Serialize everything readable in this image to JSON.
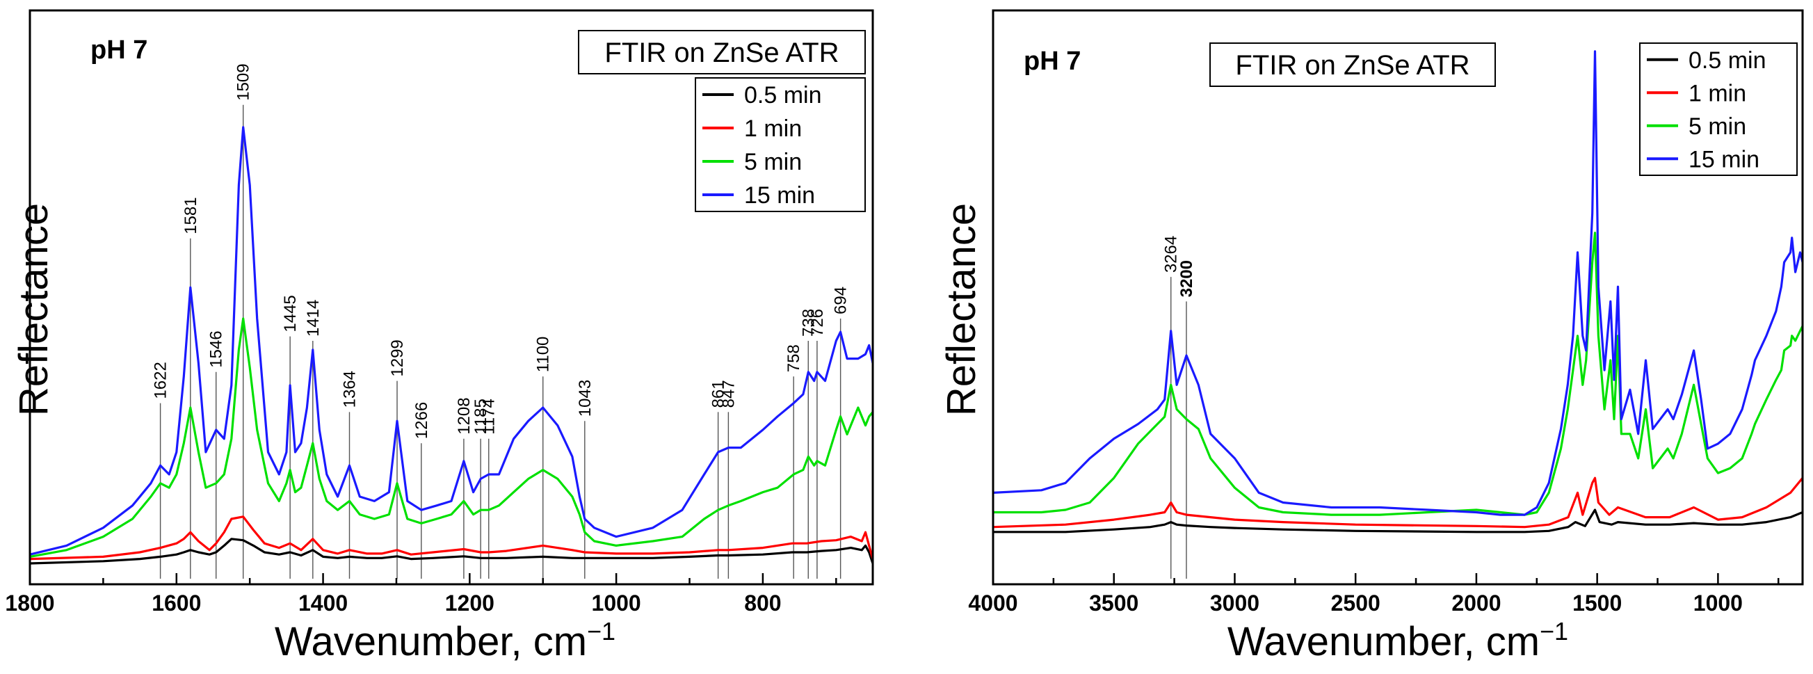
{
  "chart_data": [
    {
      "type": "line",
      "panel": "left",
      "title": "FTIR on ZnSe ATR",
      "annotation": "pH 7",
      "xlabel": "Wavenumber, cm",
      "xlabel_sup": "−1",
      "ylabel": "Reflectance",
      "xlim": [
        1800,
        650
      ],
      "ylim": [
        0,
        1
      ],
      "x_reversed": true,
      "x_ticks": [
        1800,
        1600,
        1400,
        1200,
        1000,
        800
      ],
      "y_ticks_shown": false,
      "legend": {
        "placement": "top-right",
        "entries": [
          "0.5 min",
          "1 min",
          "5 min",
          "15 min"
        ]
      },
      "peak_labels": [
        "1622",
        "1581",
        "1546",
        "1509",
        "1445",
        "1414",
        "1364",
        "1299",
        "1266",
        "1208",
        "1185",
        "1174",
        "1100",
        "1043",
        "861",
        "847",
        "758",
        "738",
        "726",
        "694"
      ],
      "peak_positions": [
        1622,
        1581,
        1546,
        1509,
        1445,
        1414,
        1364,
        1299,
        1266,
        1208,
        1185,
        1174,
        1100,
        1043,
        861,
        847,
        758,
        738,
        726,
        694
      ],
      "peak_label_tops": [
        0.36,
        0.73,
        0.43,
        1.03,
        0.51,
        0.5,
        0.34,
        0.41,
        0.27,
        0.28,
        0.28,
        0.28,
        0.42,
        0.32,
        0.34,
        0.34,
        0.42,
        0.5,
        0.5,
        0.55
      ],
      "series": [
        {
          "name": "0.5 min",
          "color": "#000000",
          "x": [
            1800,
            1700,
            1650,
            1622,
            1600,
            1590,
            1581,
            1570,
            1555,
            1546,
            1535,
            1525,
            1509,
            1495,
            1480,
            1460,
            1445,
            1430,
            1414,
            1400,
            1380,
            1364,
            1340,
            1320,
            1299,
            1280,
            1250,
            1208,
            1185,
            1174,
            1150,
            1100,
            1060,
            1043,
            1000,
            950,
            900,
            861,
            847,
            800,
            760,
            740,
            720,
            700,
            680,
            665,
            660,
            655,
            650
          ],
          "values": [
            0.0,
            0.005,
            0.01,
            0.015,
            0.02,
            0.025,
            0.03,
            0.025,
            0.02,
            0.025,
            0.04,
            0.055,
            0.052,
            0.04,
            0.025,
            0.02,
            0.025,
            0.018,
            0.03,
            0.015,
            0.012,
            0.015,
            0.012,
            0.012,
            0.016,
            0.01,
            0.012,
            0.016,
            0.012,
            0.012,
            0.012,
            0.015,
            0.012,
            0.012,
            0.012,
            0.012,
            0.015,
            0.018,
            0.018,
            0.02,
            0.025,
            0.025,
            0.028,
            0.03,
            0.035,
            0.03,
            0.04,
            0.025,
            0.0
          ]
        },
        {
          "name": "1 min",
          "color": "#ff0000",
          "x": [
            1800,
            1700,
            1650,
            1622,
            1600,
            1590,
            1581,
            1570,
            1555,
            1546,
            1535,
            1525,
            1509,
            1495,
            1480,
            1460,
            1445,
            1430,
            1414,
            1400,
            1380,
            1364,
            1340,
            1320,
            1299,
            1280,
            1250,
            1208,
            1185,
            1174,
            1150,
            1100,
            1060,
            1043,
            1000,
            950,
            900,
            861,
            847,
            800,
            760,
            740,
            720,
            700,
            680,
            665,
            660,
            655,
            650
          ],
          "values": [
            0.01,
            0.015,
            0.025,
            0.035,
            0.045,
            0.055,
            0.07,
            0.05,
            0.03,
            0.045,
            0.07,
            0.1,
            0.105,
            0.075,
            0.045,
            0.035,
            0.045,
            0.03,
            0.055,
            0.03,
            0.022,
            0.03,
            0.022,
            0.022,
            0.03,
            0.02,
            0.025,
            0.032,
            0.025,
            0.025,
            0.028,
            0.04,
            0.03,
            0.025,
            0.022,
            0.022,
            0.025,
            0.03,
            0.03,
            0.035,
            0.045,
            0.045,
            0.05,
            0.052,
            0.06,
            0.05,
            0.07,
            0.04,
            0.01
          ]
        },
        {
          "name": "5 min",
          "color": "#00e000",
          "x": [
            1800,
            1750,
            1700,
            1660,
            1635,
            1622,
            1610,
            1600,
            1590,
            1581,
            1570,
            1560,
            1546,
            1535,
            1525,
            1515,
            1509,
            1500,
            1490,
            1475,
            1460,
            1450,
            1445,
            1438,
            1430,
            1422,
            1414,
            1405,
            1395,
            1380,
            1364,
            1350,
            1330,
            1310,
            1299,
            1285,
            1266,
            1245,
            1225,
            1208,
            1195,
            1185,
            1174,
            1160,
            1140,
            1120,
            1100,
            1080,
            1060,
            1050,
            1043,
            1030,
            1000,
            950,
            910,
            880,
            861,
            847,
            830,
            800,
            780,
            758,
            745,
            738,
            730,
            726,
            715,
            700,
            694,
            685,
            670,
            660,
            655,
            650
          ],
          "values": [
            0.015,
            0.03,
            0.06,
            0.1,
            0.15,
            0.18,
            0.17,
            0.2,
            0.27,
            0.35,
            0.25,
            0.17,
            0.18,
            0.2,
            0.28,
            0.48,
            0.55,
            0.44,
            0.3,
            0.18,
            0.14,
            0.18,
            0.21,
            0.16,
            0.17,
            0.22,
            0.27,
            0.19,
            0.14,
            0.12,
            0.14,
            0.11,
            0.1,
            0.11,
            0.18,
            0.1,
            0.09,
            0.1,
            0.11,
            0.14,
            0.11,
            0.12,
            0.12,
            0.13,
            0.16,
            0.19,
            0.21,
            0.19,
            0.15,
            0.11,
            0.07,
            0.05,
            0.04,
            0.05,
            0.06,
            0.1,
            0.12,
            0.13,
            0.14,
            0.16,
            0.17,
            0.2,
            0.21,
            0.24,
            0.22,
            0.23,
            0.22,
            0.3,
            0.33,
            0.29,
            0.35,
            0.31,
            0.33,
            0.34
          ]
        },
        {
          "name": "15 min",
          "color": "#1a1aff",
          "x": [
            1800,
            1750,
            1700,
            1660,
            1635,
            1622,
            1610,
            1600,
            1590,
            1581,
            1570,
            1560,
            1546,
            1535,
            1525,
            1515,
            1509,
            1500,
            1490,
            1475,
            1460,
            1450,
            1445,
            1438,
            1430,
            1422,
            1414,
            1405,
            1395,
            1380,
            1364,
            1350,
            1330,
            1310,
            1299,
            1285,
            1266,
            1245,
            1225,
            1208,
            1195,
            1185,
            1174,
            1160,
            1140,
            1120,
            1100,
            1080,
            1060,
            1050,
            1043,
            1030,
            1000,
            950,
            910,
            880,
            861,
            847,
            830,
            800,
            780,
            758,
            745,
            738,
            730,
            726,
            715,
            700,
            694,
            685,
            670,
            660,
            655,
            650
          ],
          "values": [
            0.02,
            0.04,
            0.08,
            0.13,
            0.18,
            0.22,
            0.2,
            0.25,
            0.42,
            0.62,
            0.45,
            0.25,
            0.3,
            0.28,
            0.4,
            0.85,
            0.98,
            0.85,
            0.55,
            0.25,
            0.2,
            0.25,
            0.4,
            0.25,
            0.27,
            0.35,
            0.48,
            0.3,
            0.2,
            0.15,
            0.22,
            0.15,
            0.14,
            0.16,
            0.32,
            0.14,
            0.12,
            0.13,
            0.14,
            0.23,
            0.16,
            0.19,
            0.2,
            0.2,
            0.28,
            0.32,
            0.35,
            0.31,
            0.24,
            0.15,
            0.1,
            0.08,
            0.06,
            0.08,
            0.12,
            0.2,
            0.25,
            0.26,
            0.26,
            0.3,
            0.33,
            0.36,
            0.38,
            0.43,
            0.41,
            0.43,
            0.41,
            0.5,
            0.52,
            0.46,
            0.46,
            0.47,
            0.49,
            0.45
          ]
        }
      ]
    },
    {
      "type": "line",
      "panel": "right",
      "title": "FTIR on ZnSe ATR",
      "annotation": "pH 7",
      "xlabel": "Wavenumber, cm",
      "xlabel_sup": "−1",
      "ylabel": "Reflectance",
      "xlim": [
        4000,
        650
      ],
      "ylim": [
        0,
        1
      ],
      "x_reversed": true,
      "x_ticks": [
        4000,
        3500,
        3000,
        2500,
        2000,
        1500,
        1000
      ],
      "y_ticks_shown": false,
      "legend": {
        "placement": "top-right",
        "entries": [
          "0.5 min",
          "1 min",
          "5 min",
          "15 min"
        ]
      },
      "peak_labels": [
        "3264",
        "3200"
      ],
      "peak_positions": [
        3264,
        3200
      ],
      "peak_label_tops": [
        0.57,
        0.52
      ],
      "series": [
        {
          "name": "0.5 min",
          "color": "#000000",
          "x": [
            4000,
            3700,
            3500,
            3350,
            3290,
            3264,
            3240,
            3200,
            3100,
            3000,
            2800,
            2500,
            2000,
            1800,
            1700,
            1620,
            1590,
            1550,
            1515,
            1509,
            1490,
            1440,
            1414,
            1300,
            1200,
            1100,
            1000,
            900,
            800,
            700,
            650
          ],
          "values": [
            0.05,
            0.05,
            0.055,
            0.06,
            0.065,
            0.07,
            0.065,
            0.063,
            0.06,
            0.058,
            0.055,
            0.052,
            0.05,
            0.05,
            0.052,
            0.06,
            0.07,
            0.062,
            0.09,
            0.095,
            0.07,
            0.065,
            0.07,
            0.065,
            0.065,
            0.068,
            0.065,
            0.065,
            0.07,
            0.08,
            0.09
          ]
        },
        {
          "name": "1 min",
          "color": "#ff0000",
          "x": [
            4000,
            3700,
            3500,
            3350,
            3290,
            3264,
            3240,
            3200,
            3100,
            3000,
            2800,
            2500,
            2000,
            1800,
            1700,
            1620,
            1581,
            1560,
            1520,
            1509,
            1495,
            1450,
            1414,
            1300,
            1200,
            1100,
            1000,
            900,
            800,
            700,
            650
          ],
          "values": [
            0.06,
            0.065,
            0.075,
            0.085,
            0.09,
            0.11,
            0.09,
            0.085,
            0.08,
            0.075,
            0.07,
            0.065,
            0.062,
            0.06,
            0.065,
            0.08,
            0.13,
            0.085,
            0.15,
            0.16,
            0.11,
            0.085,
            0.1,
            0.08,
            0.08,
            0.1,
            0.075,
            0.08,
            0.1,
            0.13,
            0.16
          ]
        },
        {
          "name": "5 min",
          "color": "#00e000",
          "x": [
            4000,
            3800,
            3700,
            3600,
            3500,
            3400,
            3320,
            3290,
            3264,
            3240,
            3200,
            3150,
            3100,
            3000,
            2900,
            2800,
            2600,
            2400,
            2200,
            2000,
            1900,
            1800,
            1750,
            1700,
            1650,
            1622,
            1600,
            1581,
            1560,
            1546,
            1520,
            1509,
            1495,
            1470,
            1445,
            1430,
            1414,
            1400,
            1364,
            1330,
            1299,
            1270,
            1208,
            1185,
            1150,
            1100,
            1070,
            1043,
            1000,
            950,
            900,
            861,
            847,
            800,
            760,
            738,
            726,
            700,
            694,
            680,
            660,
            650
          ],
          "values": [
            0.09,
            0.09,
            0.095,
            0.11,
            0.16,
            0.23,
            0.27,
            0.285,
            0.35,
            0.3,
            0.28,
            0.26,
            0.2,
            0.14,
            0.1,
            0.09,
            0.085,
            0.085,
            0.09,
            0.095,
            0.09,
            0.085,
            0.09,
            0.13,
            0.22,
            0.3,
            0.38,
            0.45,
            0.35,
            0.4,
            0.6,
            0.66,
            0.45,
            0.3,
            0.4,
            0.28,
            0.45,
            0.25,
            0.25,
            0.2,
            0.3,
            0.18,
            0.22,
            0.2,
            0.25,
            0.35,
            0.27,
            0.2,
            0.17,
            0.18,
            0.2,
            0.25,
            0.27,
            0.32,
            0.36,
            0.38,
            0.42,
            0.43,
            0.45,
            0.44,
            0.46,
            0.47
          ]
        },
        {
          "name": "15 min",
          "color": "#1a1aff",
          "x": [
            4000,
            3800,
            3700,
            3600,
            3500,
            3400,
            3320,
            3290,
            3264,
            3240,
            3200,
            3150,
            3100,
            3000,
            2900,
            2800,
            2600,
            2400,
            2200,
            2000,
            1900,
            1800,
            1750,
            1700,
            1650,
            1622,
            1600,
            1581,
            1560,
            1546,
            1520,
            1509,
            1495,
            1470,
            1445,
            1430,
            1414,
            1400,
            1364,
            1330,
            1299,
            1270,
            1208,
            1185,
            1150,
            1100,
            1070,
            1043,
            1000,
            950,
            900,
            861,
            847,
            800,
            760,
            738,
            726,
            700,
            694,
            680,
            660,
            650
          ],
          "values": [
            0.13,
            0.135,
            0.15,
            0.2,
            0.24,
            0.27,
            0.3,
            0.32,
            0.46,
            0.35,
            0.41,
            0.35,
            0.25,
            0.2,
            0.13,
            0.11,
            0.1,
            0.1,
            0.095,
            0.09,
            0.085,
            0.085,
            0.1,
            0.15,
            0.26,
            0.35,
            0.45,
            0.62,
            0.45,
            0.42,
            0.7,
            1.03,
            0.55,
            0.38,
            0.52,
            0.36,
            0.55,
            0.28,
            0.34,
            0.25,
            0.4,
            0.26,
            0.3,
            0.28,
            0.33,
            0.42,
            0.32,
            0.22,
            0.23,
            0.25,
            0.3,
            0.37,
            0.4,
            0.45,
            0.5,
            0.55,
            0.6,
            0.62,
            0.65,
            0.58,
            0.62,
            0.6
          ]
        }
      ]
    }
  ]
}
